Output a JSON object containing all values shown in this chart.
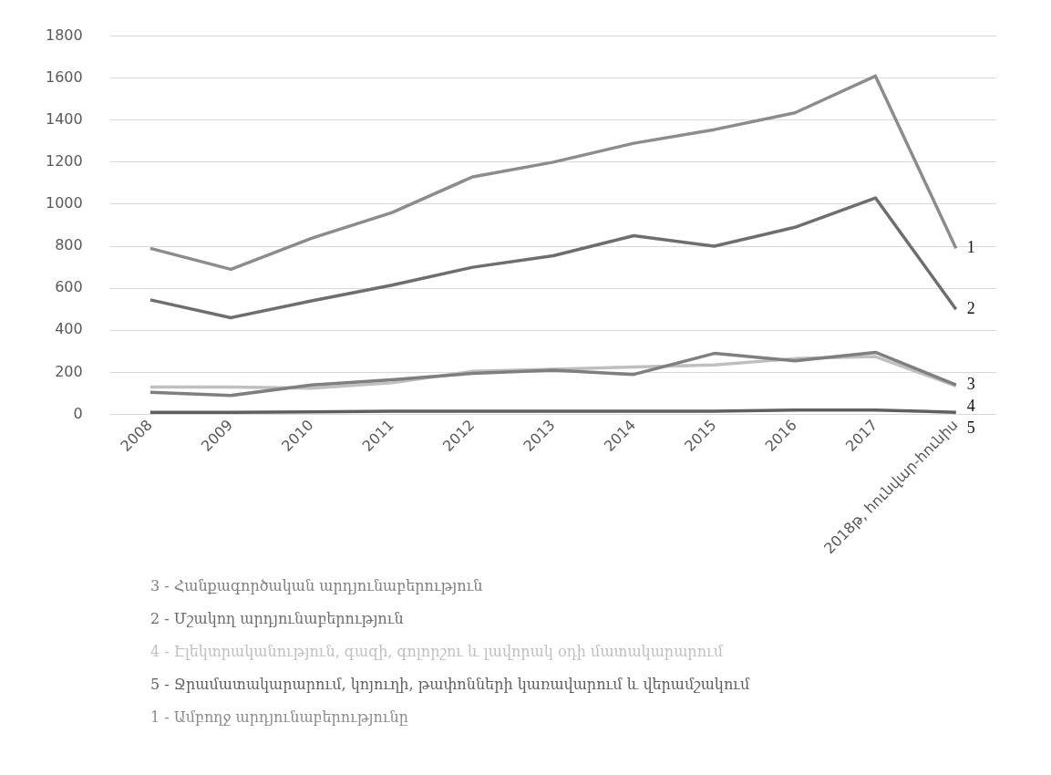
{
  "chart_data": {
    "type": "line",
    "categories": [
      "2008",
      "2009",
      "2010",
      "2011",
      "2012",
      "2013",
      "2014",
      "2015",
      "2016",
      "2017",
      "2018թ, հունվար-հունիս"
    ],
    "series": [
      {
        "name": "3 - Հանքագործական արդյունաբերություն",
        "color": "#7f7f7f",
        "values": [
          105,
          90,
          140,
          165,
          195,
          210,
          190,
          290,
          255,
          295,
          140
        ]
      },
      {
        "name": "2 - Մշակող արդյունաբերություն",
        "color": "#6e6e6e",
        "values": [
          545,
          460,
          540,
          615,
          700,
          755,
          850,
          800,
          890,
          1030,
          500
        ]
      },
      {
        "name": "4 - Էլեկտրականություն, գազի, գոլորշու և լավորակ օդի մատակարարում",
        "color": "#bfbfbf",
        "values": [
          130,
          130,
          125,
          150,
          205,
          215,
          225,
          235,
          265,
          275,
          135
        ]
      },
      {
        "name": "5 - Ջրամատակարարում, կոյուղի, թափոնների կառավարում և վերամշակում",
        "color": "#5f5f5f",
        "values": [
          10,
          10,
          12,
          15,
          15,
          15,
          15,
          15,
          20,
          20,
          10
        ]
      },
      {
        "name": "1 - Ամբողջ արդյունաբերությունը",
        "color": "#8c8c8c",
        "values": [
          790,
          690,
          838,
          960,
          1130,
          1200,
          1290,
          1355,
          1435,
          1610,
          790
        ]
      }
    ],
    "ylim": [
      0,
      1800
    ],
    "yticks": [
      0,
      200,
      400,
      600,
      800,
      1000,
      1200,
      1400,
      1600,
      1800
    ],
    "grid": "y",
    "legend": "bottom",
    "marker": "none",
    "line_style": "solid",
    "annotations": [
      {
        "text": "1",
        "x": "2018թ, հունվար-հունիս",
        "y": 790
      },
      {
        "text": "2",
        "x": "2018թ, հունվար-հունիս",
        "y": 500
      },
      {
        "text": "3",
        "x": "2018թ, հունվար-հունիս",
        "y": 140
      },
      {
        "text": "4",
        "x": "2018թ, հունվար-հունիս",
        "y": 135
      },
      {
        "text": "5",
        "x": "2018թ, հունվար-հունիս",
        "y": 10
      }
    ]
  }
}
